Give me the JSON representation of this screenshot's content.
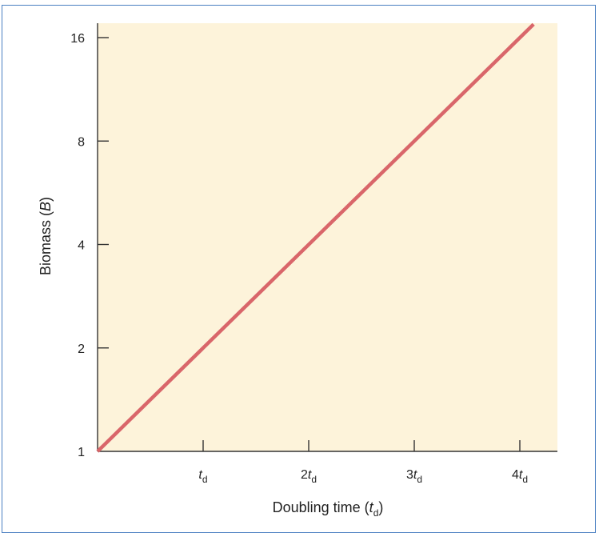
{
  "colors": {
    "plot_background": "#fdf3da",
    "line": "#d9666a",
    "axis": "#333333",
    "frame": "#4a7fc1"
  },
  "chart_data": {
    "type": "line",
    "title": "",
    "xlabel": {
      "prefix": "Doubling time (",
      "var": "t",
      "sub": "d",
      "suffix": ")"
    },
    "ylabel": {
      "prefix": "Biomass (",
      "var": "B",
      "suffix": ")"
    },
    "yscale": "log2",
    "ylim": [
      1,
      18
    ],
    "xlim": [
      0,
      4.35
    ],
    "grid": false,
    "x_ticks": [
      {
        "value": 1,
        "coef": "",
        "var": "t",
        "sub": "d"
      },
      {
        "value": 2,
        "coef": "2",
        "var": "t",
        "sub": "d"
      },
      {
        "value": 3,
        "coef": "3",
        "var": "t",
        "sub": "d"
      },
      {
        "value": 4,
        "coef": "4",
        "var": "t",
        "sub": "d"
      }
    ],
    "y_ticks": [
      {
        "value": 1,
        "label": "1"
      },
      {
        "value": 2,
        "label": "2"
      },
      {
        "value": 4,
        "label": "4"
      },
      {
        "value": 8,
        "label": "8"
      },
      {
        "value": 16,
        "label": "16"
      }
    ],
    "series": [
      {
        "x": [
          0,
          4.13
        ],
        "y": [
          1,
          17.5
        ]
      }
    ]
  }
}
